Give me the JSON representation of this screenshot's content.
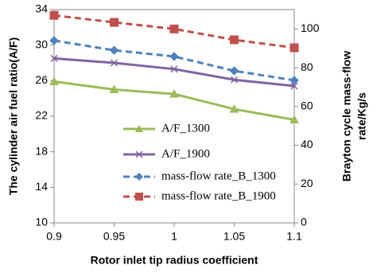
{
  "chart_data": {
    "type": "line",
    "xlabel": "Rotor inlet tip radius coefficient",
    "ylabel": "The cylinder air fuel ratio(A/F)",
    "y2label": [
      "Brayton cycle mass-flow",
      "rate/Kg/s"
    ],
    "x": [
      0.9,
      0.95,
      1,
      1.05,
      1.1
    ],
    "xlim": [
      0.9,
      1.1
    ],
    "xticks": [
      0.9,
      0.95,
      1,
      1.05,
      1.1
    ],
    "ylim": [
      10,
      34
    ],
    "yticks": [
      10,
      14,
      18,
      22,
      26,
      30,
      34
    ],
    "y2lim": [
      0,
      110
    ],
    "y2ticks": [
      0,
      20,
      40,
      60,
      80,
      100
    ],
    "grid": false,
    "legend": "lower center",
    "series": [
      {
        "name": "A/F_1300",
        "color": "#9bbb59",
        "marker": "triangle",
        "dash": false,
        "values": [
          25.9,
          25.0,
          24.5,
          22.8,
          21.6
        ]
      },
      {
        "name": "A/F_1900",
        "color": "#8064a2",
        "marker": "x",
        "dash": false,
        "values": [
          28.5,
          28.0,
          27.3,
          26.1,
          25.4
        ]
      },
      {
        "name": "mass-flow rate_B_1300",
        "color": "#4f81bd",
        "marker": "diamond",
        "dash": true,
        "axis": "y2",
        "values": [
          94,
          89,
          85.8,
          78.4,
          73.5
        ]
      },
      {
        "name": "mass-flow rate_B_1900",
        "color": "#c0504d",
        "marker": "square",
        "dash": true,
        "axis": "y2",
        "values": [
          107,
          103.4,
          100,
          94.4,
          90.3
        ]
      }
    ]
  }
}
